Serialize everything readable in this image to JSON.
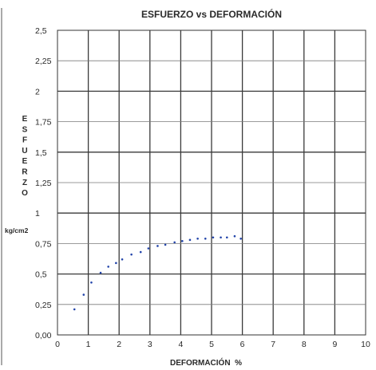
{
  "chart_data": {
    "type": "scatter",
    "title": "ESFUERZO vs DEFORMACIÓN",
    "xlabel": "DEFORMACIÓN  %",
    "ylabel_letters": [
      "E",
      "S",
      "F",
      "U",
      "E",
      "R",
      "Z",
      "O"
    ],
    "yunit": "kg/cm2",
    "xlim": [
      0,
      10
    ],
    "ylim": [
      0,
      2.5
    ],
    "xticks": [
      "0",
      "1",
      "2",
      "3",
      "4",
      "5",
      "6",
      "7",
      "8",
      "9",
      "10"
    ],
    "yticks": [
      "0,00",
      "0,25",
      "0,5",
      "0,75",
      "1",
      "1,25",
      "1,5",
      "1,75",
      "2",
      "2,25",
      "2,5"
    ],
    "grid": true,
    "legend": "none",
    "series": [
      {
        "x": [
          0.55,
          0.85,
          1.1,
          1.4,
          1.65,
          1.9,
          2.1,
          2.4,
          2.7,
          2.95,
          3.25,
          3.5,
          3.8,
          4.05,
          4.3,
          4.55,
          4.8,
          5.05,
          5.3,
          5.5,
          5.75,
          5.95
        ],
        "y": [
          0.21,
          0.33,
          0.43,
          0.51,
          0.56,
          0.59,
          0.62,
          0.66,
          0.68,
          0.71,
          0.73,
          0.74,
          0.76,
          0.77,
          0.78,
          0.79,
          0.79,
          0.8,
          0.8,
          0.8,
          0.81,
          0.79
        ],
        "color": "#2244aa"
      }
    ]
  }
}
